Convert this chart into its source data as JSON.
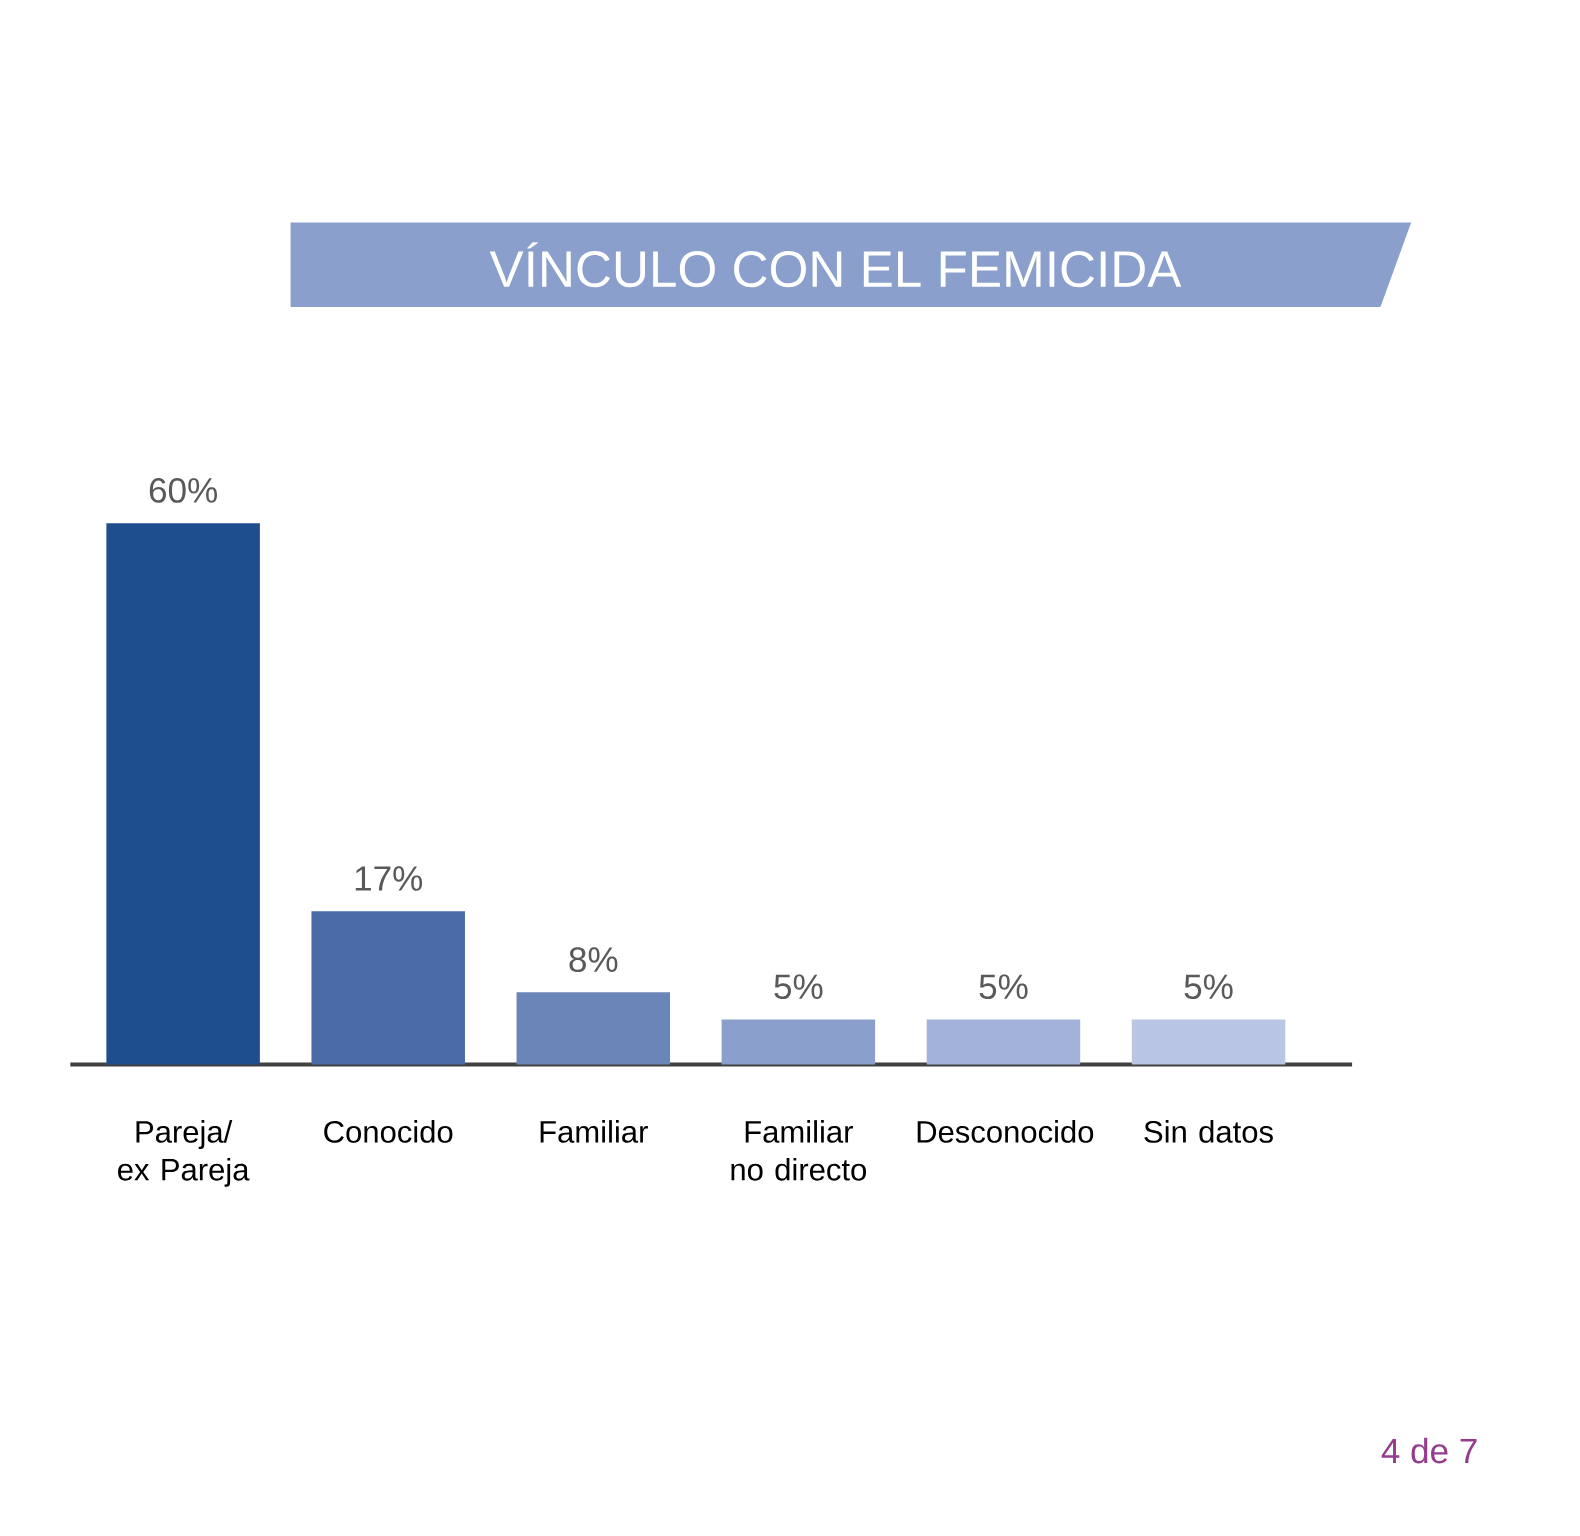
{
  "chart_data": {
    "type": "bar",
    "title": "VÍNCULO CON EL FEMICIDA",
    "categories": [
      "Pareja/ ex Pareja",
      "Conocido",
      "Familiar",
      "Familiar no directo",
      "Desconocido",
      "Sin datos"
    ],
    "values": [
      60,
      17,
      8,
      5,
      5,
      5
    ],
    "colors": [
      "#1f4e8f",
      "#4a6aa8",
      "#6a85b8",
      "#8a9fcb",
      "#a2b2d8",
      "#b9c6e3"
    ],
    "value_labels": [
      "60%",
      "17%",
      "8%",
      "5%",
      "5%",
      "5%"
    ],
    "tick_labels": "x",
    "annotations": [
      "4 de 7"
    ]
  }
}
